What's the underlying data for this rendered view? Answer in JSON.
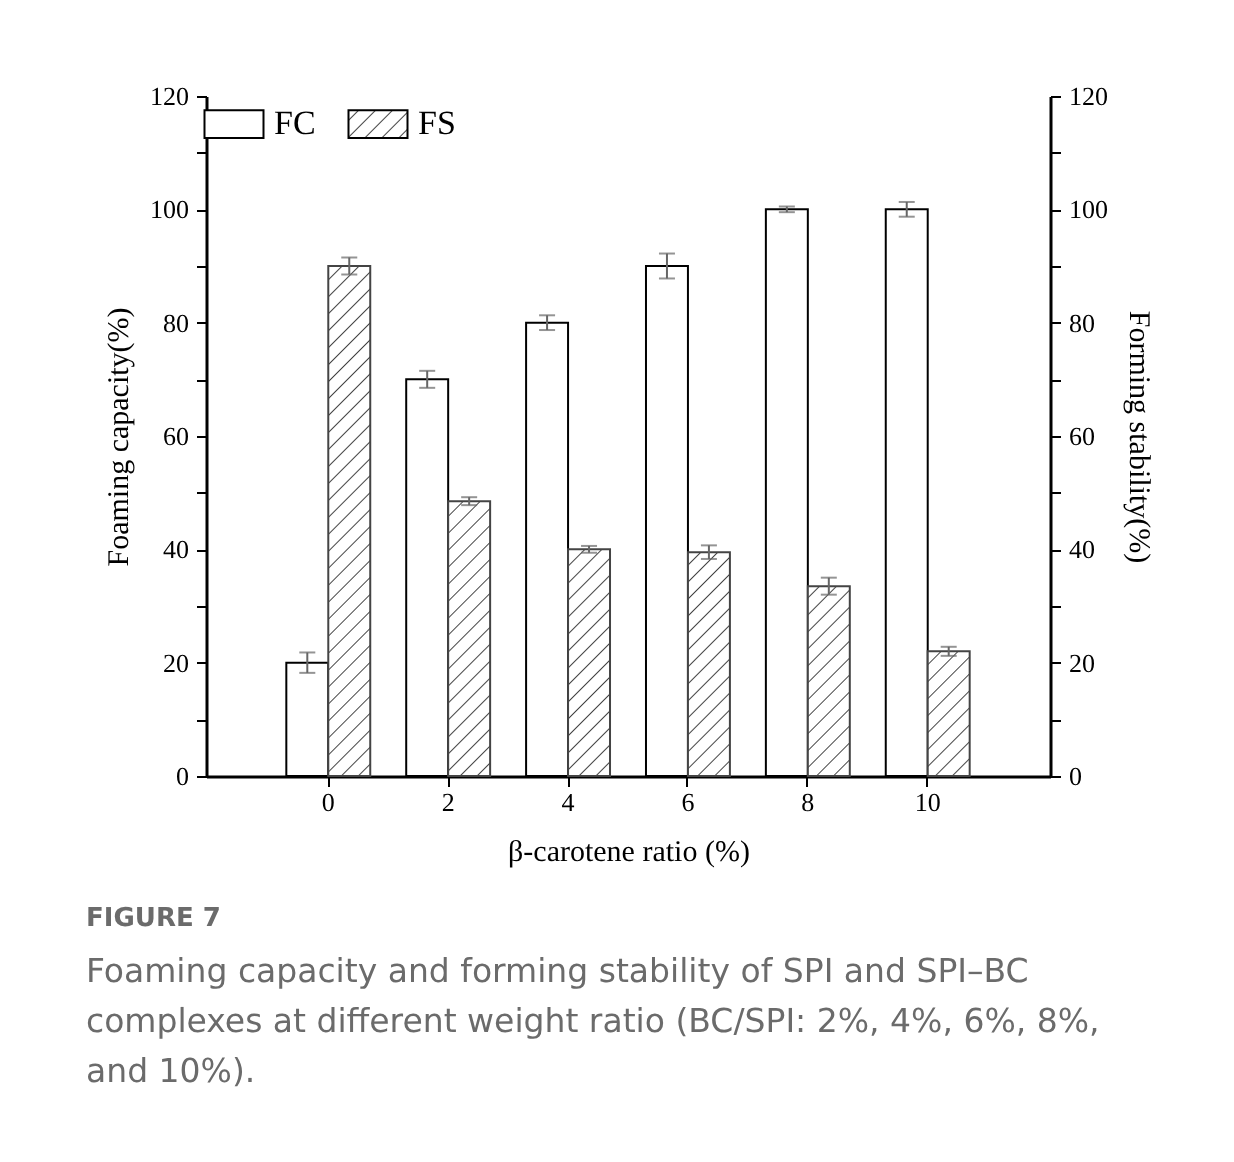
{
  "chart_data": {
    "type": "bar",
    "xlabel": "β-carotene ratio (%)",
    "ylabel": "Foaming capacity(%)",
    "y2label": "Forming stability(%)",
    "categories": [
      "0",
      "2",
      "4",
      "6",
      "8",
      "10"
    ],
    "series": [
      {
        "name": "FC",
        "color": "#ffffff",
        "values": [
          20,
          70,
          80,
          90,
          100,
          100
        ],
        "errors": [
          1.8,
          1.5,
          1.3,
          2.2,
          0.5,
          1.3
        ]
      },
      {
        "name": "FS",
        "color": "#444444",
        "axis": "y2",
        "values": [
          90,
          48.5,
          40,
          39.5,
          33.5,
          22
        ],
        "errors": [
          1.5,
          0.7,
          0.6,
          1.2,
          1.5,
          0.8
        ]
      }
    ],
    "ylim": [
      0,
      120
    ],
    "yticks": [
      0,
      {
        "value": 10,
        "label": null
      },
      20,
      {
        "value": 30,
        "label": null
      },
      40,
      {
        "value": 50,
        "label": null
      },
      60,
      {
        "value": 70,
        "label": null
      },
      80,
      {
        "value": 90,
        "label": null
      },
      100,
      {
        "value": 110,
        "label": null
      },
      120
    ],
    "y2lim": [
      0,
      120
    ],
    "y2ticks": [
      0,
      {
        "value": 10,
        "label": null
      },
      20,
      {
        "value": 30,
        "label": null
      },
      40,
      {
        "value": 50,
        "label": null
      },
      60,
      {
        "value": 70,
        "label": null
      },
      80,
      {
        "value": 90,
        "label": null
      },
      100,
      {
        "value": 110,
        "label": null
      },
      120
    ],
    "grid": false,
    "legend": "top left",
    "annotations": [
      "FIGURE 7",
      "Foaming capacity and forming stability of SPI and SPI–BC complexes at different weight ratio (BC/SPI: 2%, 4%, 6%, 8%, and 10%)."
    ]
  }
}
